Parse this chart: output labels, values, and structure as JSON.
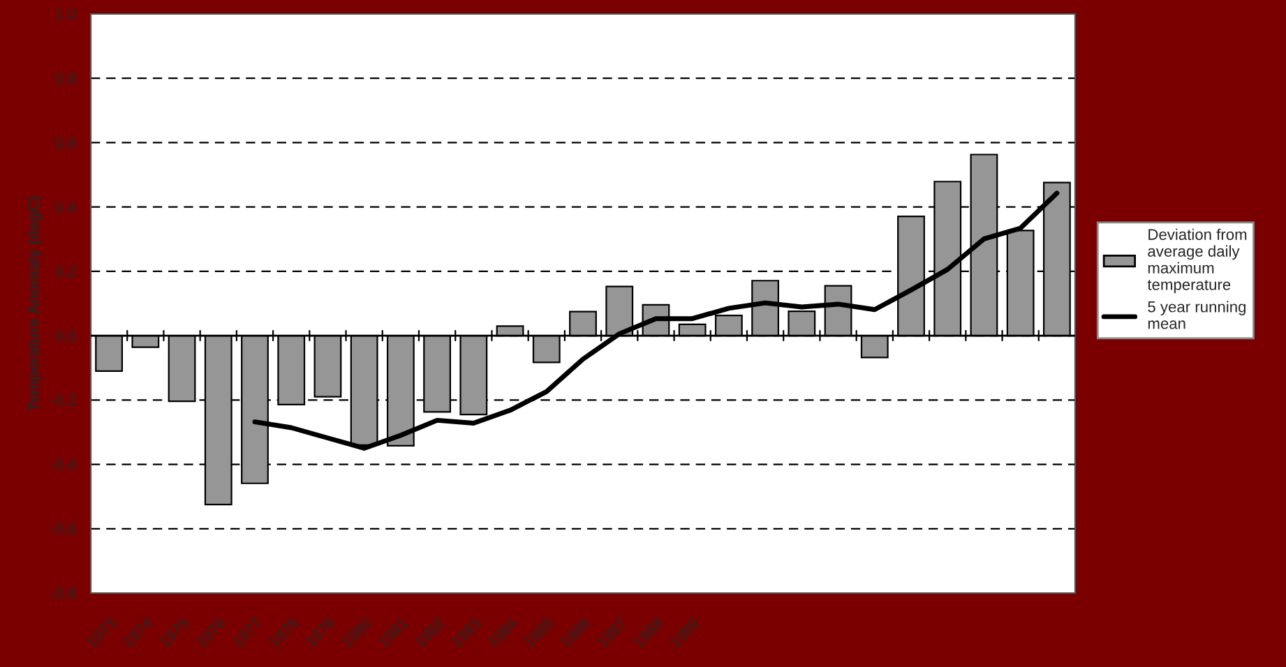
{
  "chart_data": {
    "type": "bar",
    "ylabel": "Temperature Anomaly (degC)",
    "categories": [
      "1973",
      "1974",
      "1975",
      "1976",
      "1977",
      "1978",
      "1979",
      "1980",
      "1981",
      "1982",
      "1983",
      "1984",
      "1985",
      "1986",
      "1987",
      "1988",
      "1989",
      null,
      null,
      null,
      null,
      null,
      null,
      null,
      null,
      null,
      null
    ],
    "series": [
      {
        "name": "Deviation from average daily maximum temperature",
        "color": "#969696",
        "values": [
          -0.11,
          -0.036,
          -0.204,
          -0.525,
          -0.459,
          -0.214,
          -0.19,
          -0.34,
          -0.342,
          -0.237,
          -0.245,
          0.03,
          -0.083,
          0.075,
          0.153,
          0.096,
          0.035,
          0.063,
          0.171,
          0.076,
          0.155,
          -0.068,
          0.371,
          0.479,
          0.563,
          0.327,
          0.476
        ]
      },
      {
        "name": "5 year running mean",
        "type": "line",
        "color": "#000000",
        "values": [
          null,
          null,
          null,
          null,
          -0.268,
          -0.286,
          -0.318,
          -0.35,
          -0.31,
          -0.263,
          -0.272,
          -0.232,
          -0.174,
          -0.073,
          0.006,
          0.053,
          0.053,
          0.085,
          0.102,
          0.089,
          0.098,
          0.081,
          0.142,
          0.206,
          0.301,
          0.334,
          0.443
        ]
      }
    ],
    "ylim": [
      -0.8,
      1.0
    ],
    "yticks": [
      {
        "value": -0.8,
        "label": "-0.8"
      },
      {
        "value": -0.6,
        "label": "-0.6"
      },
      {
        "value": -0.4,
        "label": "-0.4"
      },
      {
        "value": -0.2,
        "label": "-0.2"
      },
      {
        "value": 0.0,
        "label": "0.0"
      },
      {
        "value": 0.2,
        "label": "0.2"
      },
      {
        "value": 0.4,
        "label": "0.4"
      },
      {
        "value": 0.6,
        "label": "0.6"
      },
      {
        "value": 0.8,
        "label": "0.8"
      },
      {
        "value": 1.0,
        "label": "1.0"
      }
    ],
    "grid": "y",
    "legend": "right",
    "line_style": "solid",
    "marker": "none"
  }
}
